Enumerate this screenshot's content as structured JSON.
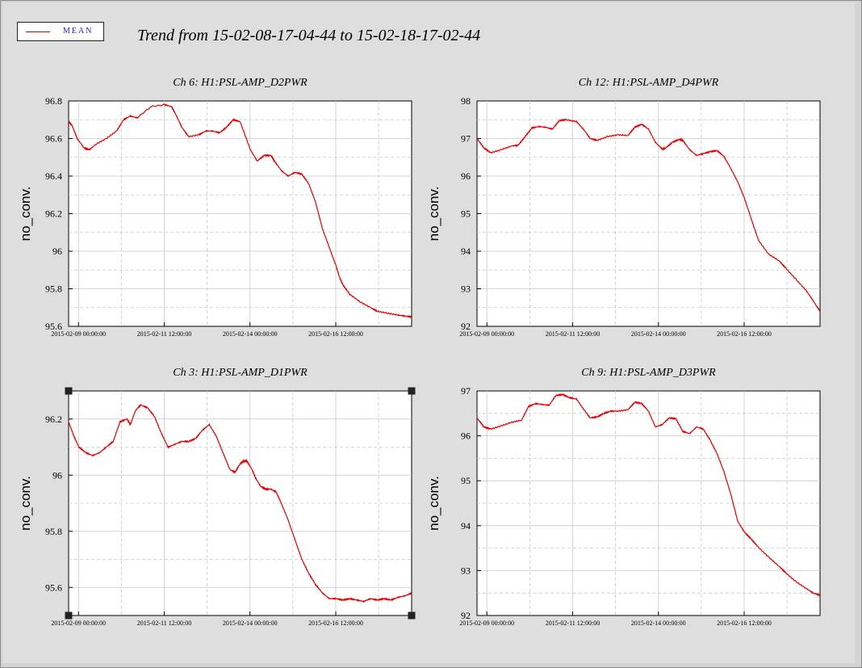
{
  "legend": {
    "label": "MEAN",
    "color": "#e00000"
  },
  "title": "Trend from 15-02-08-17-04-44 to 15-02-18-17-02-44",
  "chart_data": [
    {
      "type": "line",
      "title": "Ch 6: H1:PSL-AMP_D2PWR",
      "ylabel": "no_conv.",
      "ylim": [
        95.6,
        96.8
      ],
      "yticks": [
        "96.8",
        "96.6",
        "96.4",
        "96.2",
        "96",
        "95.8",
        "95.6"
      ],
      "xlim": [
        "2015-02-08 17:04:44",
        "2015-02-18 17:02:44"
      ],
      "xticks": [
        "2015-02-09 00:00:00",
        "2015-02-11 12:00:00",
        "2015-02-14 00:00:00",
        "2015-02-16 12:00:00"
      ],
      "grid": true,
      "series": [
        {
          "name": "MEAN",
          "color": "#e00000",
          "x_days": [
            0,
            0.1,
            0.25,
            0.45,
            0.6,
            0.8,
            1.1,
            1.4,
            1.6,
            1.8,
            2.0,
            2.4,
            2.8,
            3.0,
            3.15,
            3.3,
            3.5,
            3.8,
            4.0,
            4.2,
            4.4,
            4.6,
            4.8,
            5.0,
            5.3,
            5.5,
            5.7,
            5.9,
            6.0,
            6.2,
            6.4,
            6.6,
            6.8,
            7.0,
            7.2,
            7.4,
            7.6,
            7.8,
            7.9,
            8.0,
            8.2,
            8.5,
            8.8,
            9.0,
            9.3,
            9.6,
            9.8,
            10.0
          ],
          "y": [
            96.69,
            96.67,
            96.6,
            96.55,
            96.54,
            96.57,
            96.6,
            96.64,
            96.7,
            96.72,
            96.71,
            96.77,
            96.78,
            96.77,
            96.72,
            96.66,
            96.61,
            96.62,
            96.64,
            96.64,
            96.63,
            96.66,
            96.7,
            96.69,
            96.54,
            96.48,
            96.51,
            96.51,
            96.48,
            96.43,
            96.4,
            96.42,
            96.41,
            96.36,
            96.26,
            96.12,
            96.02,
            95.92,
            95.86,
            95.82,
            95.77,
            95.73,
            95.7,
            95.68,
            95.67,
            95.66,
            95.655,
            95.65
          ]
        }
      ]
    },
    {
      "type": "line",
      "title": "Ch 12: H1:PSL-AMP_D4PWR",
      "ylabel": "no_conv.",
      "ylim": [
        92,
        98
      ],
      "yticks": [
        "98",
        "97",
        "96",
        "95",
        "94",
        "93",
        "92"
      ],
      "xlim": [
        "2015-02-08 17:04:44",
        "2015-02-18 17:02:44"
      ],
      "xticks": [
        "2015-02-09 00:00:00",
        "2015-02-11 12:00:00",
        "2015-02-14 00:00:00",
        "2015-02-16 12:00:00"
      ],
      "grid": true,
      "series": [
        {
          "name": "MEAN",
          "color": "#e00000",
          "x_days": [
            0,
            0.2,
            0.4,
            0.7,
            1.0,
            1.2,
            1.4,
            1.6,
            1.8,
            2.0,
            2.2,
            2.4,
            2.6,
            2.9,
            3.1,
            3.3,
            3.5,
            3.8,
            4.1,
            4.4,
            4.6,
            4.8,
            5.0,
            5.2,
            5.4,
            5.5,
            5.7,
            5.9,
            6.0,
            6.2,
            6.4,
            6.6,
            6.8,
            7.0,
            7.2,
            7.4,
            7.6,
            7.8,
            8.0,
            8.2,
            8.5,
            8.8,
            9.0,
            9.3,
            9.6,
            9.8,
            10.0
          ],
          "y": [
            97.0,
            96.75,
            96.62,
            96.7,
            96.8,
            96.82,
            97.05,
            97.28,
            97.32,
            97.3,
            97.25,
            97.48,
            97.5,
            97.45,
            97.25,
            97.0,
            96.95,
            97.05,
            97.1,
            97.08,
            97.3,
            97.38,
            97.25,
            96.9,
            96.72,
            96.75,
            96.9,
            96.98,
            96.95,
            96.7,
            96.55,
            96.6,
            96.65,
            96.68,
            96.52,
            96.2,
            95.85,
            95.4,
            94.85,
            94.3,
            93.92,
            93.75,
            93.55,
            93.25,
            92.95,
            92.68,
            92.4
          ]
        }
      ]
    },
    {
      "type": "line",
      "title": "Ch 3: H1:PSL-AMP_D1PWR",
      "ylabel": "no_conv.",
      "ylim": [
        95.5,
        96.3
      ],
      "yticks": [
        "96.2",
        "96",
        "95.8",
        "95.6"
      ],
      "xlim": [
        "2015-02-08 17:04:44",
        "2015-02-18 17:02:44"
      ],
      "xticks": [
        "2015-02-09 00:00:00",
        "2015-02-11 12:00:00",
        "2015-02-14 00:00:00",
        "2015-02-16 12:00:00"
      ],
      "grid": true,
      "series": [
        {
          "name": "MEAN",
          "color": "#e00000",
          "x_days": [
            0,
            0.15,
            0.3,
            0.5,
            0.7,
            0.9,
            1.1,
            1.3,
            1.5,
            1.7,
            1.8,
            1.95,
            2.1,
            2.3,
            2.5,
            2.7,
            2.9,
            3.1,
            3.3,
            3.5,
            3.7,
            3.9,
            4.1,
            4.3,
            4.5,
            4.7,
            4.85,
            5.0,
            5.1,
            5.2,
            5.35,
            5.45,
            5.6,
            5.75,
            5.9,
            6.05,
            6.2,
            6.4,
            6.6,
            6.8,
            7.0,
            7.2,
            7.4,
            7.6,
            7.8,
            8.0,
            8.2,
            8.4,
            8.6,
            8.8,
            9.0,
            9.2,
            9.4,
            9.6,
            9.8,
            10.0
          ],
          "y": [
            96.19,
            96.14,
            96.1,
            96.08,
            96.07,
            96.08,
            96.1,
            96.12,
            96.19,
            96.2,
            96.18,
            96.23,
            96.25,
            96.24,
            96.21,
            96.15,
            96.1,
            96.11,
            96.12,
            96.12,
            96.13,
            96.16,
            96.18,
            96.14,
            96.08,
            96.02,
            96.01,
            96.04,
            96.05,
            96.05,
            96.02,
            95.99,
            95.96,
            95.95,
            95.95,
            95.94,
            95.9,
            95.84,
            95.77,
            95.7,
            95.65,
            95.61,
            95.58,
            95.56,
            95.56,
            95.555,
            95.56,
            95.555,
            95.55,
            95.56,
            95.555,
            95.56,
            95.555,
            95.565,
            95.57,
            95.58
          ]
        }
      ]
    },
    {
      "type": "line",
      "title": "Ch 9: H1:PSL-AMP_D3PWR",
      "ylabel": "no_conv.",
      "ylim": [
        92,
        97
      ],
      "yticks": [
        "97",
        "96",
        "95",
        "94",
        "93",
        "92"
      ],
      "xlim": [
        "2015-02-08 17:04:44",
        "2015-02-18 17:02:44"
      ],
      "xticks": [
        "2015-02-09 00:00:00",
        "2015-02-11 12:00:00",
        "2015-02-14 00:00:00",
        "2015-02-16 12:00:00"
      ],
      "grid": true,
      "series": [
        {
          "name": "MEAN",
          "color": "#e00000",
          "x_days": [
            0,
            0.2,
            0.4,
            0.7,
            1.0,
            1.3,
            1.5,
            1.7,
            1.9,
            2.1,
            2.3,
            2.5,
            2.7,
            2.9,
            3.1,
            3.3,
            3.5,
            3.7,
            3.9,
            4.1,
            4.4,
            4.6,
            4.8,
            5.0,
            5.2,
            5.4,
            5.6,
            5.8,
            6.0,
            6.2,
            6.4,
            6.6,
            6.8,
            7.0,
            7.2,
            7.4,
            7.6,
            7.8,
            8.0,
            8.2,
            8.5,
            8.8,
            9.0,
            9.3,
            9.6,
            9.8,
            10.0
          ],
          "y": [
            96.4,
            96.2,
            96.15,
            96.22,
            96.3,
            96.35,
            96.65,
            96.72,
            96.7,
            96.68,
            96.9,
            96.92,
            96.85,
            96.82,
            96.6,
            96.4,
            96.42,
            96.5,
            96.55,
            96.55,
            96.58,
            96.75,
            96.72,
            96.55,
            96.2,
            96.25,
            96.4,
            96.38,
            96.1,
            96.05,
            96.2,
            96.15,
            95.9,
            95.6,
            95.2,
            94.7,
            94.1,
            93.85,
            93.7,
            93.52,
            93.3,
            93.1,
            92.95,
            92.75,
            92.6,
            92.5,
            92.45
          ]
        }
      ]
    }
  ]
}
